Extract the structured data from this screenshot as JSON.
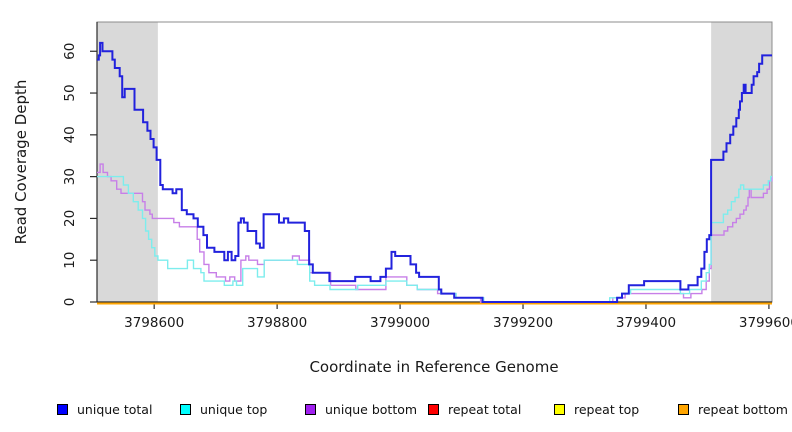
{
  "figure": {
    "background": "#ffffff"
  },
  "chart_data": {
    "type": "line",
    "subtype": "step",
    "title": "",
    "xlabel": "Coordinate in Reference Genome",
    "ylabel": "Read Coverage Depth",
    "xlim": [
      3798507,
      3799605
    ],
    "ylim": [
      0,
      67
    ],
    "x_ticks": [
      3798600,
      3798800,
      3799000,
      3799200,
      3799400,
      3799600
    ],
    "y_ticks": [
      0,
      10,
      20,
      30,
      40,
      50,
      60
    ],
    "grid": false,
    "legend_position": "bottom",
    "shade_color": "#d9d9d9",
    "shaded_regions": [
      {
        "from": 3798507,
        "to": 3798606
      },
      {
        "from": 3799506,
        "to": 3799605
      }
    ],
    "series": [
      {
        "name": "unique total",
        "legend_color": "#0000ff",
        "line_color": "#2222dd",
        "line_width": 2,
        "points": [
          [
            3798507,
            58
          ],
          [
            3798510,
            59
          ],
          [
            3798512,
            62
          ],
          [
            3798516,
            60
          ],
          [
            3798532,
            58
          ],
          [
            3798536,
            56
          ],
          [
            3798544,
            54
          ],
          [
            3798548,
            49
          ],
          [
            3798552,
            51
          ],
          [
            3798568,
            46
          ],
          [
            3798582,
            43
          ],
          [
            3798589,
            41
          ],
          [
            3798594,
            39
          ],
          [
            3798599,
            37
          ],
          [
            3798604,
            34
          ],
          [
            3798610,
            28
          ],
          [
            3798614,
            27
          ],
          [
            3798630,
            26
          ],
          [
            3798636,
            27
          ],
          [
            3798645,
            22
          ],
          [
            3798653,
            21
          ],
          [
            3798664,
            20
          ],
          [
            3798671,
            18
          ],
          [
            3798680,
            16
          ],
          [
            3798686,
            13
          ],
          [
            3798698,
            12
          ],
          [
            3798714,
            10
          ],
          [
            3798720,
            12
          ],
          [
            3798726,
            10
          ],
          [
            3798732,
            11
          ],
          [
            3798737,
            19
          ],
          [
            3798741,
            20
          ],
          [
            3798746,
            19
          ],
          [
            3798752,
            17
          ],
          [
            3798766,
            14
          ],
          [
            3798772,
            13
          ],
          [
            3798778,
            21
          ],
          [
            3798803,
            19
          ],
          [
            3798811,
            20
          ],
          [
            3798818,
            19
          ],
          [
            3798845,
            17
          ],
          [
            3798852,
            9
          ],
          [
            3798858,
            7
          ],
          [
            3798885,
            5
          ],
          [
            3798927,
            6
          ],
          [
            3798952,
            5
          ],
          [
            3798968,
            6
          ],
          [
            3798977,
            8
          ],
          [
            3798986,
            12
          ],
          [
            3798992,
            11
          ],
          [
            3799017,
            9
          ],
          [
            3799026,
            7
          ],
          [
            3799031,
            6
          ],
          [
            3799063,
            3
          ],
          [
            3799067,
            2
          ],
          [
            3799088,
            1
          ],
          [
            3799134,
            0
          ],
          [
            3799353,
            1
          ],
          [
            3799361,
            2
          ],
          [
            3799372,
            4
          ],
          [
            3799397,
            5
          ],
          [
            3799456,
            3
          ],
          [
            3799469,
            4
          ],
          [
            3799484,
            6
          ],
          [
            3799490,
            8
          ],
          [
            3799495,
            12
          ],
          [
            3799499,
            15
          ],
          [
            3799503,
            16
          ],
          [
            3799506,
            34
          ],
          [
            3799526,
            36
          ],
          [
            3799531,
            38
          ],
          [
            3799537,
            40
          ],
          [
            3799542,
            42
          ],
          [
            3799547,
            44
          ],
          [
            3799551,
            46
          ],
          [
            3799553,
            48
          ],
          [
            3799556,
            50
          ],
          [
            3799559,
            52
          ],
          [
            3799562,
            50
          ],
          [
            3799572,
            52
          ],
          [
            3799575,
            54
          ],
          [
            3799581,
            55
          ],
          [
            3799584,
            57
          ],
          [
            3799589,
            59
          ],
          [
            3799605,
            59
          ]
        ]
      },
      {
        "name": "unique top",
        "legend_color": "#00ffff",
        "line_color": "#7deded",
        "line_width": 1.4,
        "points": [
          [
            3798507,
            30
          ],
          [
            3798550,
            28
          ],
          [
            3798558,
            26
          ],
          [
            3798566,
            24
          ],
          [
            3798574,
            22
          ],
          [
            3798581,
            20
          ],
          [
            3798586,
            17
          ],
          [
            3798591,
            15
          ],
          [
            3798596,
            13
          ],
          [
            3798601,
            11
          ],
          [
            3798606,
            10
          ],
          [
            3798622,
            8
          ],
          [
            3798654,
            10
          ],
          [
            3798664,
            8
          ],
          [
            3798676,
            7
          ],
          [
            3798681,
            5
          ],
          [
            3798714,
            4
          ],
          [
            3798728,
            5
          ],
          [
            3798734,
            4
          ],
          [
            3798744,
            8
          ],
          [
            3798768,
            6
          ],
          [
            3798779,
            10
          ],
          [
            3798833,
            9
          ],
          [
            3798853,
            5
          ],
          [
            3798861,
            4
          ],
          [
            3798886,
            3
          ],
          [
            3798931,
            4
          ],
          [
            3798977,
            5
          ],
          [
            3799011,
            4
          ],
          [
            3799028,
            3
          ],
          [
            3799066,
            2
          ],
          [
            3799091,
            1
          ],
          [
            3799136,
            0
          ],
          [
            3799341,
            1
          ],
          [
            3799361,
            2
          ],
          [
            3799375,
            3
          ],
          [
            3799456,
            2
          ],
          [
            3799471,
            3
          ],
          [
            3799490,
            5
          ],
          [
            3799498,
            7
          ],
          [
            3799503,
            9
          ],
          [
            3799506,
            19
          ],
          [
            3799526,
            21
          ],
          [
            3799533,
            22
          ],
          [
            3799539,
            24
          ],
          [
            3799545,
            25
          ],
          [
            3799551,
            27
          ],
          [
            3799554,
            28
          ],
          [
            3799559,
            27
          ],
          [
            3799591,
            28
          ],
          [
            3799599,
            29
          ],
          [
            3799603,
            30
          ]
        ]
      },
      {
        "name": "unique bottom",
        "legend_color": "#a020f0",
        "line_color": "#c77fe8",
        "line_width": 1.4,
        "points": [
          [
            3798507,
            31
          ],
          [
            3798512,
            33
          ],
          [
            3798517,
            31
          ],
          [
            3798524,
            30
          ],
          [
            3798530,
            29
          ],
          [
            3798539,
            27
          ],
          [
            3798546,
            26
          ],
          [
            3798581,
            24
          ],
          [
            3798585,
            22
          ],
          [
            3798593,
            21
          ],
          [
            3798597,
            20
          ],
          [
            3798632,
            19
          ],
          [
            3798641,
            18
          ],
          [
            3798670,
            15
          ],
          [
            3798674,
            12
          ],
          [
            3798681,
            9
          ],
          [
            3798689,
            7
          ],
          [
            3798701,
            6
          ],
          [
            3798716,
            5
          ],
          [
            3798723,
            6
          ],
          [
            3798731,
            5
          ],
          [
            3798741,
            10
          ],
          [
            3798749,
            11
          ],
          [
            3798754,
            10
          ],
          [
            3798768,
            9
          ],
          [
            3798779,
            10
          ],
          [
            3798825,
            11
          ],
          [
            3798836,
            10
          ],
          [
            3798853,
            7
          ],
          [
            3798887,
            4
          ],
          [
            3798928,
            3
          ],
          [
            3798977,
            6
          ],
          [
            3799011,
            4
          ],
          [
            3799028,
            3
          ],
          [
            3799061,
            2
          ],
          [
            3799091,
            1
          ],
          [
            3799131,
            0
          ],
          [
            3799346,
            1
          ],
          [
            3799366,
            2
          ],
          [
            3799461,
            1
          ],
          [
            3799473,
            2
          ],
          [
            3799491,
            3
          ],
          [
            3799498,
            5
          ],
          [
            3799503,
            8
          ],
          [
            3799506,
            16
          ],
          [
            3799527,
            17
          ],
          [
            3799533,
            18
          ],
          [
            3799541,
            19
          ],
          [
            3799547,
            20
          ],
          [
            3799553,
            21
          ],
          [
            3799559,
            22
          ],
          [
            3799563,
            23
          ],
          [
            3799566,
            25
          ],
          [
            3799568,
            27
          ],
          [
            3799571,
            25
          ],
          [
            3799591,
            26
          ],
          [
            3799597,
            27
          ],
          [
            3799601,
            29
          ],
          [
            3799605,
            30
          ]
        ]
      },
      {
        "name": "repeat total",
        "legend_color": "#ff0000",
        "line_color": "#ff0000",
        "line_width": 1.4,
        "points": [
          [
            3798507,
            0
          ],
          [
            3799605,
            0
          ]
        ]
      },
      {
        "name": "repeat top",
        "legend_color": "#ffff00",
        "line_color": "#ffff00",
        "line_width": 1.4,
        "points": [
          [
            3798507,
            0
          ],
          [
            3799605,
            0
          ]
        ]
      },
      {
        "name": "repeat bottom",
        "legend_color": "#ffa500",
        "line_color": "#ffa500",
        "line_width": 2,
        "points": [
          [
            3798507,
            0
          ],
          [
            3799605,
            0
          ]
        ]
      }
    ]
  }
}
